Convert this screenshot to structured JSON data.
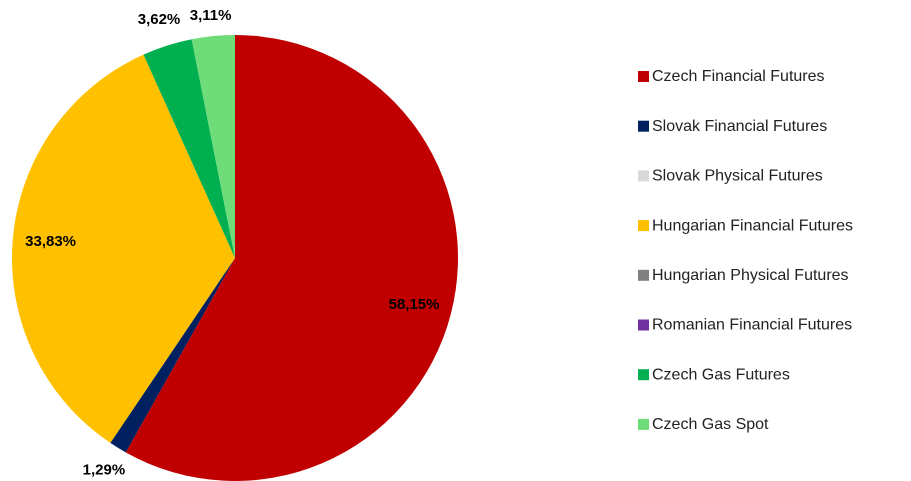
{
  "chart_data": {
    "type": "pie",
    "categories": [
      "Czech Financial Futures",
      "Slovak Financial Futures",
      "Slovak Physical Futures",
      "Hungarian Financial Futures",
      "Hungarian Physical Futures",
      "Romanian Financial Futures",
      "Czech Gas Futures",
      "Czech Gas Spot"
    ],
    "values": [
      58.15,
      1.29,
      0,
      33.83,
      0,
      0,
      3.62,
      3.11
    ],
    "value_labels": [
      "58,15%",
      "1,29%",
      null,
      "33,83%",
      null,
      null,
      "3,62%",
      "3,11%"
    ],
    "colors": [
      "#c00000",
      "#002060",
      "#d9d9d9",
      "#ffc000",
      "#808080",
      "#7030a0",
      "#00b050",
      "#6fdc7a"
    ],
    "legend": "right"
  }
}
